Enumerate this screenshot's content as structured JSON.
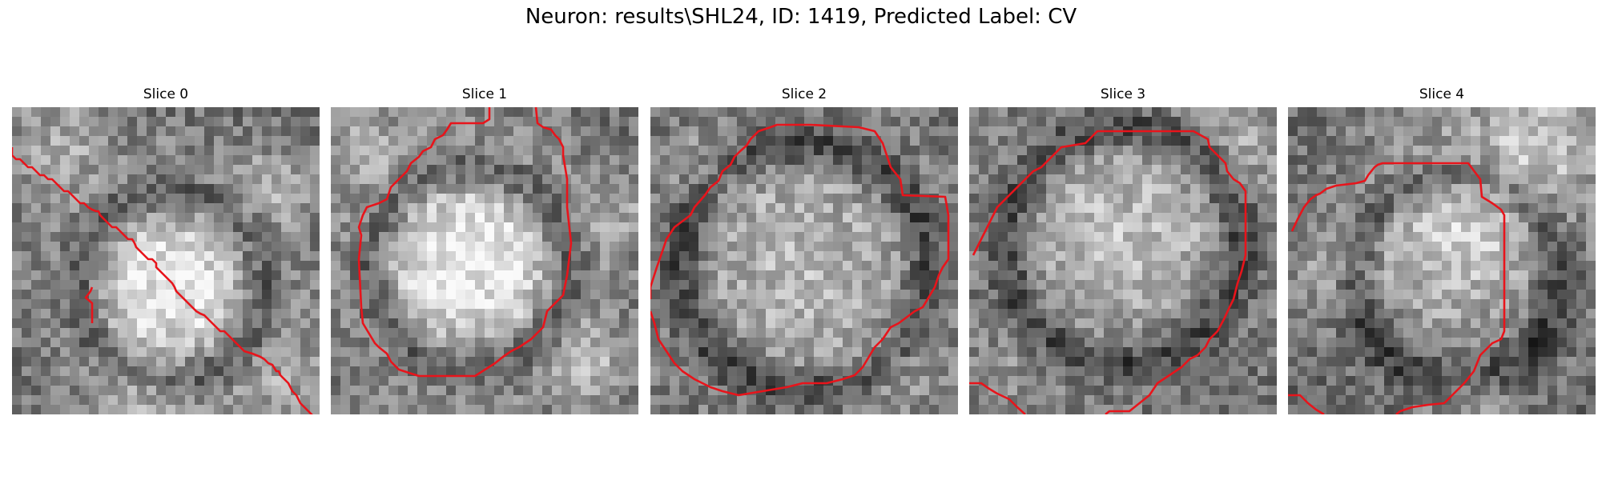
{
  "figure": {
    "title": "Neuron: results\\SHL24, ID: 1419, Predicted Label: CV",
    "contour_color": "#e8141b"
  },
  "slices": [
    {
      "title": "Slice 0"
    },
    {
      "title": "Slice 1"
    },
    {
      "title": "Slice 2"
    },
    {
      "title": "Slice 3"
    },
    {
      "title": "Slice 4"
    }
  ]
}
